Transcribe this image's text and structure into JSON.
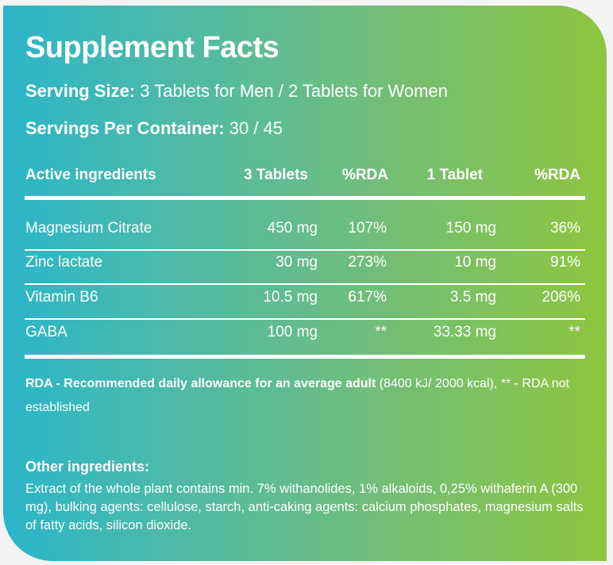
{
  "title": "Supplement Facts",
  "serving_size": {
    "label": "Serving Size:",
    "value": "3 Tablets for Men / 2 Tablets  for Women"
  },
  "servings_per_container": {
    "label": "Servings Per Container:",
    "value": "30 / 45"
  },
  "table": {
    "headers": [
      "Active ingredients",
      "3 Tablets",
      "%RDA",
      "1 Tablet",
      "%RDA"
    ],
    "rows": [
      [
        "Magnesium Citrate",
        "450 mg",
        "107%",
        "150 mg",
        "36%"
      ],
      [
        "Zinc lactate",
        "30 mg",
        "273%",
        "10 mg",
        "91%"
      ],
      [
        "Vitamin B6",
        "10.5 mg",
        "617%",
        "3.5 mg",
        "206%"
      ],
      [
        "GABA",
        "100 mg",
        "**",
        "33.33 mg",
        "**"
      ]
    ]
  },
  "note": {
    "bold": "RDA - Recommended daily allowance for an average adult",
    "rest": " (8400 kJ/ 2000 kcal), ** - RDA not established"
  },
  "other_ingredients": {
    "heading": "Other ingredients:",
    "text": "Extract of the whole plant contains min. 7% withanolides, 1% alkaloids, 0,25% withaferin A (300 mg), bulking agents: cellulose, starch, anti-caking agents: calcium phosphates, magnesium salts of fatty acids, silicon dioxide."
  },
  "colors": {
    "gradient_start": "#2bb6c9",
    "gradient_end": "#8dc63f"
  }
}
